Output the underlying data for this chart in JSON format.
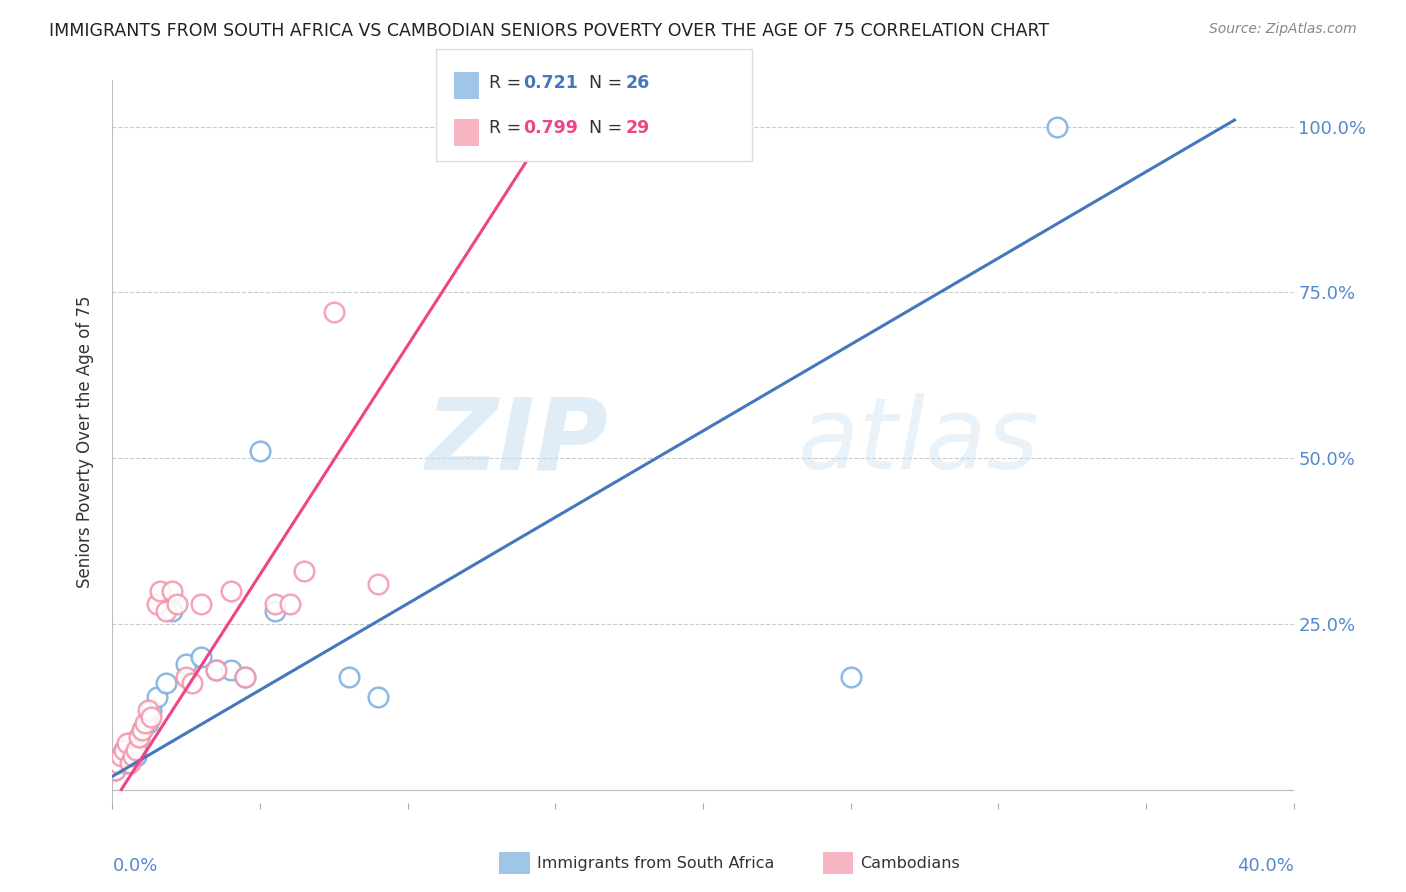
{
  "title": "IMMIGRANTS FROM SOUTH AFRICA VS CAMBODIAN SENIORS POVERTY OVER THE AGE OF 75 CORRELATION CHART",
  "source": "Source: ZipAtlas.com",
  "ylabel": "Seniors Poverty Over the Age of 75",
  "xlim": [
    0.0,
    0.4
  ],
  "ylim": [
    -0.02,
    1.07
  ],
  "yticks": [
    0.0,
    0.25,
    0.5,
    0.75,
    1.0
  ],
  "blue_R": 0.721,
  "blue_N": 26,
  "pink_R": 0.799,
  "pink_N": 29,
  "blue_color": "#7aadde",
  "pink_color": "#f595aa",
  "blue_line_color": "#4477bb",
  "pink_line_color": "#ee4488",
  "legend1_label": "Immigrants from South Africa",
  "legend2_label": "Cambodians",
  "watermark_zip": "ZIP",
  "watermark_atlas": "atlas",
  "blue_line_x": [
    0.0,
    0.38
  ],
  "blue_line_y": [
    0.02,
    1.01
  ],
  "pink_line_x": [
    0.003,
    0.155
  ],
  "pink_line_y": [
    0.0,
    1.05
  ],
  "blue_scatter_x": [
    0.001,
    0.002,
    0.003,
    0.004,
    0.005,
    0.006,
    0.007,
    0.008,
    0.009,
    0.01,
    0.012,
    0.013,
    0.015,
    0.018,
    0.02,
    0.025,
    0.03,
    0.035,
    0.04,
    0.045,
    0.05,
    0.055,
    0.08,
    0.09,
    0.25,
    0.32
  ],
  "blue_scatter_y": [
    0.03,
    0.04,
    0.05,
    0.06,
    0.04,
    0.07,
    0.06,
    0.05,
    0.08,
    0.09,
    0.1,
    0.12,
    0.14,
    0.16,
    0.27,
    0.19,
    0.2,
    0.18,
    0.18,
    0.17,
    0.51,
    0.27,
    0.17,
    0.14,
    0.17,
    1.0
  ],
  "pink_scatter_x": [
    0.001,
    0.002,
    0.003,
    0.004,
    0.005,
    0.006,
    0.007,
    0.008,
    0.009,
    0.01,
    0.011,
    0.012,
    0.013,
    0.015,
    0.016,
    0.018,
    0.02,
    0.022,
    0.025,
    0.027,
    0.03,
    0.035,
    0.04,
    0.045,
    0.055,
    0.06,
    0.065,
    0.075,
    0.09
  ],
  "pink_scatter_y": [
    0.03,
    0.04,
    0.05,
    0.06,
    0.07,
    0.04,
    0.05,
    0.06,
    0.08,
    0.09,
    0.1,
    0.12,
    0.11,
    0.28,
    0.3,
    0.27,
    0.3,
    0.28,
    0.17,
    0.16,
    0.28,
    0.18,
    0.3,
    0.17,
    0.28,
    0.28,
    0.33,
    0.72,
    0.31
  ]
}
